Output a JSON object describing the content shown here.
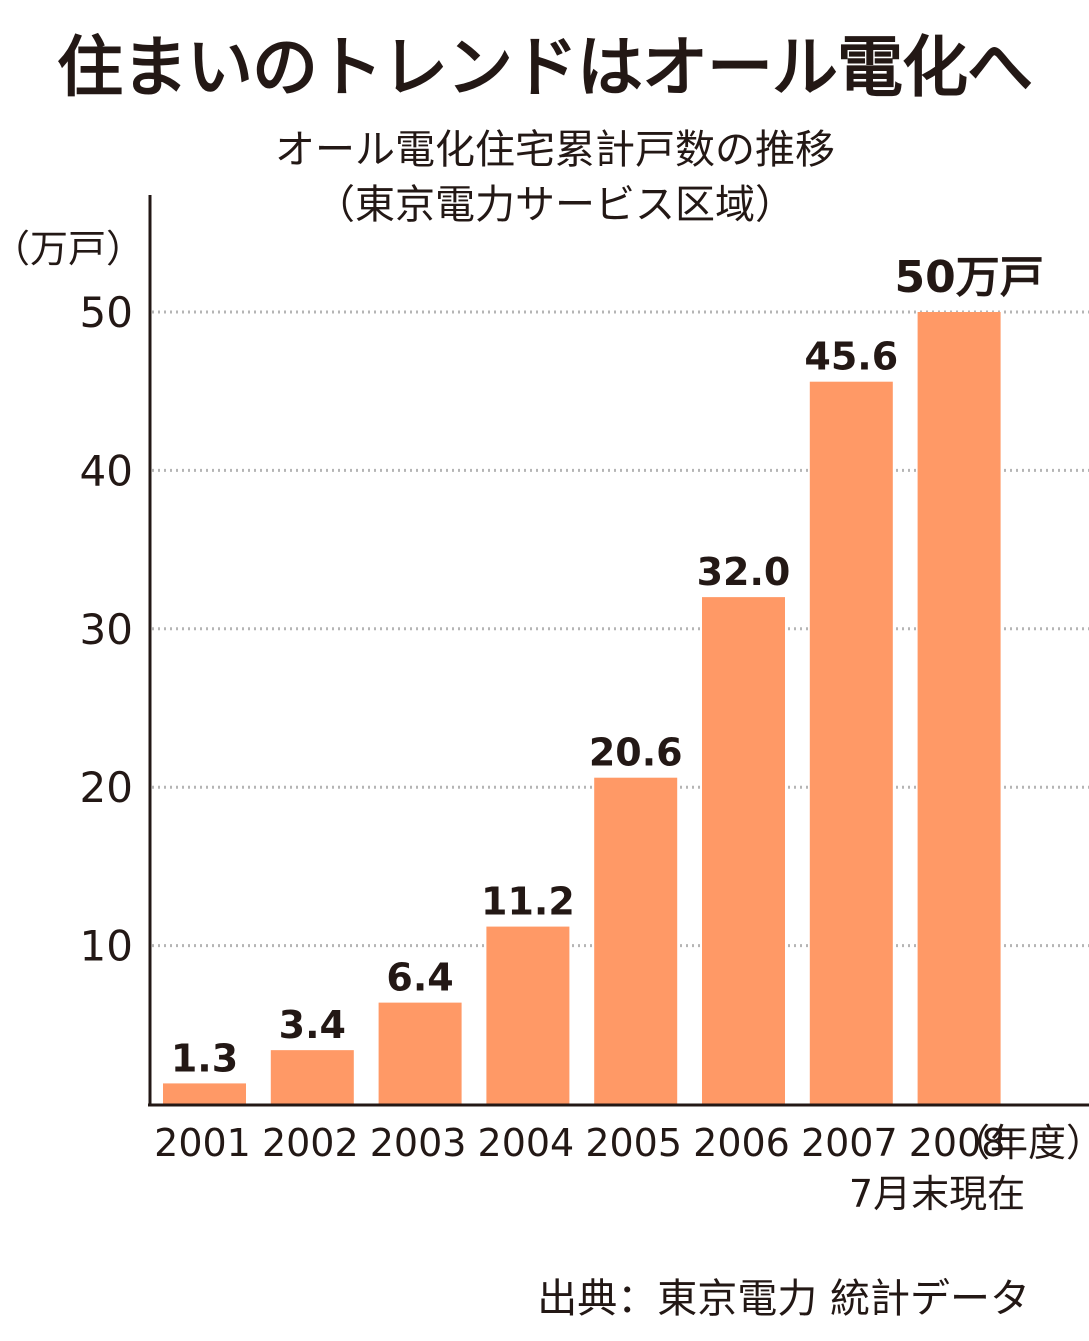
{
  "headline": "住まいのトレンドはオール電化へ",
  "chart_data": {
    "type": "bar",
    "title": "オール電化住宅累計戸数の推移",
    "subtitle": "（東京電力サービス区域）",
    "ylabel": "（万戸）",
    "xlabel": "（年度）",
    "categories": [
      "2001",
      "2002",
      "2003",
      "2004",
      "2005",
      "2006",
      "2007",
      "2008"
    ],
    "series": [
      {
        "values": [
          1.3,
          3.4,
          6.4,
          11.2,
          20.6,
          32.0,
          45.6,
          50
        ]
      }
    ],
    "data_labels": [
      "1.3",
      "3.4",
      "6.4",
      "11.2",
      "20.6",
      "32.0",
      "45.6",
      "50万戸"
    ],
    "highlight_index": 7,
    "category_note": "7月末現在",
    "yticks": [
      10,
      20,
      30,
      40,
      50
    ],
    "ylim": [
      0,
      50
    ],
    "grid": "horizontal-dotted",
    "colors": {
      "bar": "#ff9966",
      "highlight_label": "#f47a2a",
      "text": "#231815",
      "grid": "#b5b5b5"
    }
  },
  "source": "出典：東京電力 統計データ"
}
